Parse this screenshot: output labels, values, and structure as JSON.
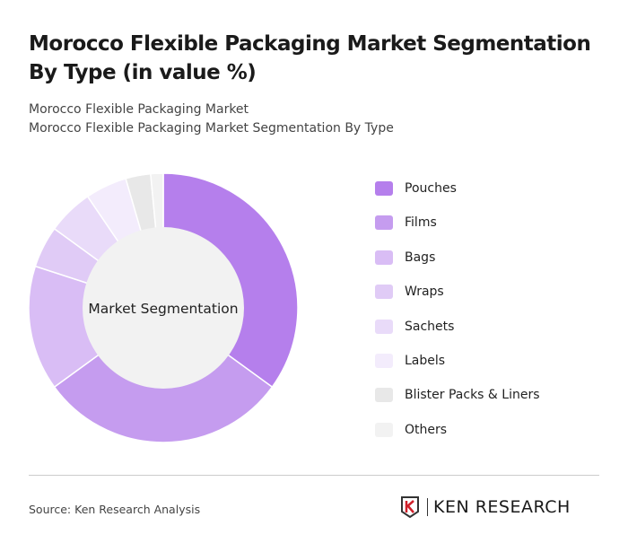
{
  "header": {
    "title": "Morocco Flexible Packaging Market Segmentation By Type (in value %)",
    "subtitle1": "Morocco Flexible Packaging Market",
    "subtitle2": "Morocco Flexible Packaging Market Segmentation By Type"
  },
  "chart_data": {
    "type": "pie",
    "variant": "donut",
    "center_label": "Market Segmentation",
    "categories": [
      "Pouches",
      "Films",
      "Bags",
      "Wraps",
      "Sachets",
      "Labels",
      "Blister Packs & Liners",
      "Others"
    ],
    "values": [
      35,
      30,
      15,
      5,
      5.5,
      5,
      3,
      1.5
    ],
    "colors": [
      "#b57fec",
      "#c59cef",
      "#d9bdf5",
      "#e0cbf6",
      "#e9dbf9",
      "#f3ecfc",
      "#e8e8e8",
      "#f2f2f2"
    ],
    "legend_position": "right"
  },
  "footer": {
    "source": "Source: Ken Research Analysis",
    "logo_text": "KEN RESEARCH"
  }
}
